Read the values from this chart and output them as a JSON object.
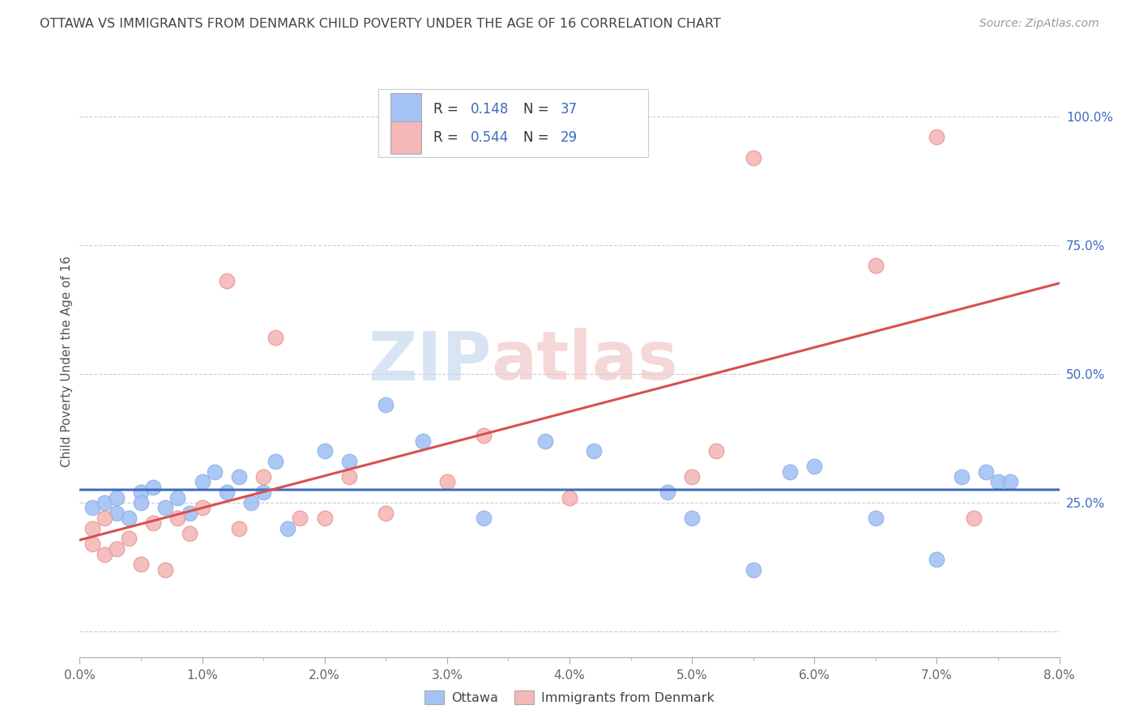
{
  "title": "OTTAWA VS IMMIGRANTS FROM DENMARK CHILD POVERTY UNDER THE AGE OF 16 CORRELATION CHART",
  "source": "Source: ZipAtlas.com",
  "ylabel": "Child Poverty Under the Age of 16",
  "xlim": [
    0.0,
    0.08
  ],
  "ylim": [
    -0.05,
    1.1
  ],
  "right_yticks": [
    0.25,
    0.5,
    0.75,
    1.0
  ],
  "right_yticklabels": [
    "25.0%",
    "50.0%",
    "75.0%",
    "100.0%"
  ],
  "grid_yticks": [
    0.0,
    0.25,
    0.5,
    0.75,
    1.0
  ],
  "ottawa_R": "0.148",
  "ottawa_N": "37",
  "denmark_R": "0.544",
  "denmark_N": "29",
  "ottawa_color": "#a4c2f4",
  "denmark_color": "#f4b8b8",
  "ottawa_line_color": "#3d6bbf",
  "denmark_line_color": "#d94f4f",
  "legend_blue_color": "#3d6bbf",
  "value_blue_color": "#3d6bbf",
  "title_color": "#444444",
  "source_color": "#999999",
  "watermark_zip_color": "#c8d8f0",
  "watermark_atlas_color": "#f0c8c8",
  "background_color": "#ffffff",
  "grid_color": "#cccccc",
  "ottawa_x": [
    0.001,
    0.002,
    0.003,
    0.003,
    0.004,
    0.005,
    0.005,
    0.006,
    0.007,
    0.008,
    0.009,
    0.01,
    0.011,
    0.012,
    0.013,
    0.014,
    0.015,
    0.016,
    0.017,
    0.02,
    0.022,
    0.025,
    0.028,
    0.033,
    0.038,
    0.042,
    0.048,
    0.05,
    0.055,
    0.058,
    0.06,
    0.065,
    0.07,
    0.072,
    0.074,
    0.075,
    0.076
  ],
  "ottawa_y": [
    0.24,
    0.25,
    0.23,
    0.26,
    0.22,
    0.27,
    0.25,
    0.28,
    0.24,
    0.26,
    0.23,
    0.29,
    0.31,
    0.27,
    0.3,
    0.25,
    0.27,
    0.33,
    0.2,
    0.35,
    0.33,
    0.44,
    0.37,
    0.22,
    0.37,
    0.35,
    0.27,
    0.22,
    0.12,
    0.31,
    0.32,
    0.22,
    0.14,
    0.3,
    0.31,
    0.29,
    0.29
  ],
  "denmark_x": [
    0.001,
    0.001,
    0.002,
    0.002,
    0.003,
    0.004,
    0.005,
    0.006,
    0.007,
    0.008,
    0.009,
    0.01,
    0.012,
    0.013,
    0.015,
    0.016,
    0.018,
    0.02,
    0.022,
    0.025,
    0.03,
    0.033,
    0.04,
    0.05,
    0.052,
    0.055,
    0.065,
    0.07,
    0.073
  ],
  "denmark_y": [
    0.17,
    0.2,
    0.15,
    0.22,
    0.16,
    0.18,
    0.13,
    0.21,
    0.12,
    0.22,
    0.19,
    0.24,
    0.68,
    0.2,
    0.3,
    0.57,
    0.22,
    0.22,
    0.3,
    0.23,
    0.29,
    0.38,
    0.26,
    0.3,
    0.35,
    0.92,
    0.71,
    0.96,
    0.22
  ],
  "xticks": [
    0.0,
    0.01,
    0.02,
    0.03,
    0.04,
    0.05,
    0.06,
    0.07,
    0.08
  ],
  "xticklabels": [
    "0.0%",
    "1.0%",
    "2.0%",
    "3.0%",
    "4.0%",
    "5.0%",
    "6.0%",
    "7.0%",
    "8.0%"
  ],
  "bottom_legend_labels": [
    "Ottawa",
    "Immigrants from Denmark"
  ]
}
